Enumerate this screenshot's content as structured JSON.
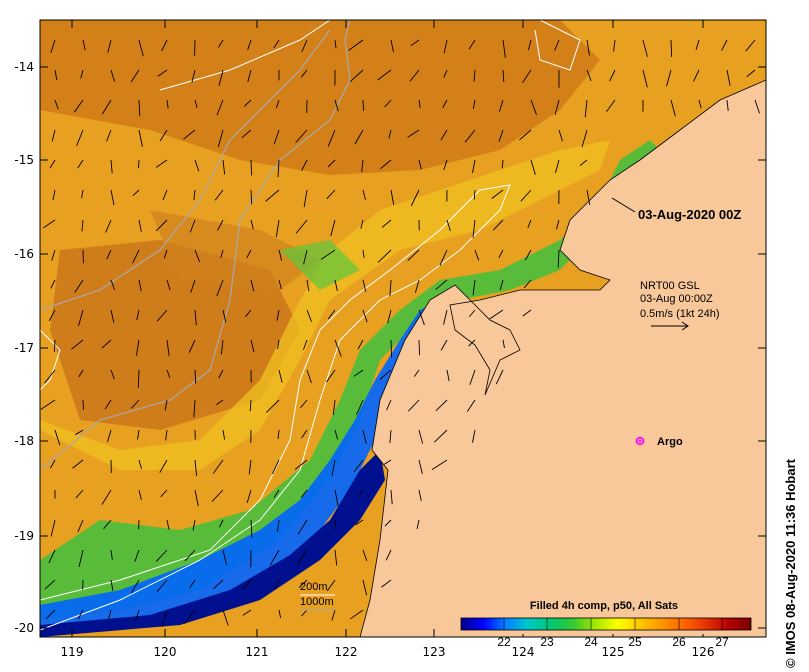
{
  "map": {
    "longitude_ticks": [
      "119",
      "120",
      "121",
      "122",
      "123",
      "124",
      "125",
      "126"
    ],
    "latitude_ticks": [
      "-14",
      "-15",
      "-16",
      "-17",
      "-18",
      "-19",
      "-20"
    ],
    "colors": {
      "land": "#f8c79a",
      "coast_line": "#000000",
      "isobath_200m": "#ffffff",
      "isobath_1000m": "#aaaaaa",
      "argo_marker": "#ff00ff"
    }
  },
  "annotations": {
    "date_label": "03-Aug-2020 00Z",
    "current_title": "NRT00 GSL",
    "current_time": "03-Aug 00:00Z",
    "current_scale": "0.5m/s (1kt 24h)",
    "argo_label": "Argo",
    "isobath_200m_label": "200m",
    "isobath_1000m_label": "1000m"
  },
  "colorbar": {
    "title": "Filled 4h comp, p50, All Sats",
    "ticks": [
      "22",
      "23",
      "24",
      "25",
      "26",
      "27"
    ],
    "stops": [
      "#00008b",
      "#0000ff",
      "#0080ff",
      "#00c8c8",
      "#00c878",
      "#32c832",
      "#a0e600",
      "#ffff00",
      "#ffc800",
      "#ff9600",
      "#ff6400",
      "#e63200",
      "#b40000",
      "#780000"
    ]
  },
  "credit": "© IMOS 08-Aug-2020 11:36 Hobart"
}
